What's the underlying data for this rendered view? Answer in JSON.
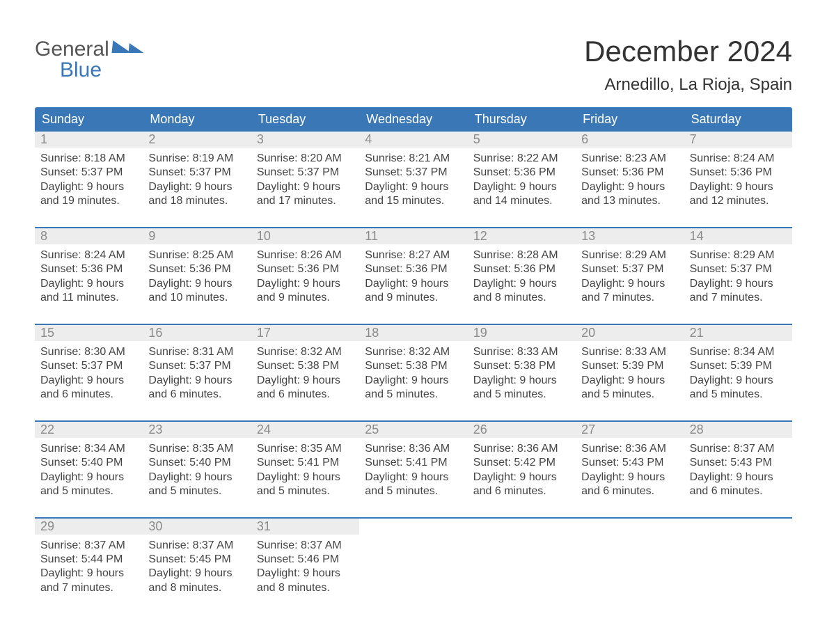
{
  "logo": {
    "line1": "General",
    "line2": "Blue"
  },
  "title": "December 2024",
  "location": "Arnedillo, La Rioja, Spain",
  "colors": {
    "header_bg": "#3a77b6",
    "header_text": "#ffffff",
    "daynum_bg": "#ededed",
    "daynum_text": "#8a8a8a",
    "body_text": "#444444",
    "page_bg": "#ffffff",
    "row_divider": "#3a77b6"
  },
  "typography": {
    "title_fontsize": 42,
    "location_fontsize": 24,
    "header_fontsize": 18,
    "daynum_fontsize": 18,
    "body_fontsize": 16
  },
  "weekdays": [
    "Sunday",
    "Monday",
    "Tuesday",
    "Wednesday",
    "Thursday",
    "Friday",
    "Saturday"
  ],
  "weeks": [
    [
      {
        "n": "1",
        "sunrise": "8:18 AM",
        "sunset": "5:37 PM",
        "daylight": "9 hours and 19 minutes."
      },
      {
        "n": "2",
        "sunrise": "8:19 AM",
        "sunset": "5:37 PM",
        "daylight": "9 hours and 18 minutes."
      },
      {
        "n": "3",
        "sunrise": "8:20 AM",
        "sunset": "5:37 PM",
        "daylight": "9 hours and 17 minutes."
      },
      {
        "n": "4",
        "sunrise": "8:21 AM",
        "sunset": "5:37 PM",
        "daylight": "9 hours and 15 minutes."
      },
      {
        "n": "5",
        "sunrise": "8:22 AM",
        "sunset": "5:36 PM",
        "daylight": "9 hours and 14 minutes."
      },
      {
        "n": "6",
        "sunrise": "8:23 AM",
        "sunset": "5:36 PM",
        "daylight": "9 hours and 13 minutes."
      },
      {
        "n": "7",
        "sunrise": "8:24 AM",
        "sunset": "5:36 PM",
        "daylight": "9 hours and 12 minutes."
      }
    ],
    [
      {
        "n": "8",
        "sunrise": "8:24 AM",
        "sunset": "5:36 PM",
        "daylight": "9 hours and 11 minutes."
      },
      {
        "n": "9",
        "sunrise": "8:25 AM",
        "sunset": "5:36 PM",
        "daylight": "9 hours and 10 minutes."
      },
      {
        "n": "10",
        "sunrise": "8:26 AM",
        "sunset": "5:36 PM",
        "daylight": "9 hours and 9 minutes."
      },
      {
        "n": "11",
        "sunrise": "8:27 AM",
        "sunset": "5:36 PM",
        "daylight": "9 hours and 9 minutes."
      },
      {
        "n": "12",
        "sunrise": "8:28 AM",
        "sunset": "5:36 PM",
        "daylight": "9 hours and 8 minutes."
      },
      {
        "n": "13",
        "sunrise": "8:29 AM",
        "sunset": "5:37 PM",
        "daylight": "9 hours and 7 minutes."
      },
      {
        "n": "14",
        "sunrise": "8:29 AM",
        "sunset": "5:37 PM",
        "daylight": "9 hours and 7 minutes."
      }
    ],
    [
      {
        "n": "15",
        "sunrise": "8:30 AM",
        "sunset": "5:37 PM",
        "daylight": "9 hours and 6 minutes."
      },
      {
        "n": "16",
        "sunrise": "8:31 AM",
        "sunset": "5:37 PM",
        "daylight": "9 hours and 6 minutes."
      },
      {
        "n": "17",
        "sunrise": "8:32 AM",
        "sunset": "5:38 PM",
        "daylight": "9 hours and 6 minutes."
      },
      {
        "n": "18",
        "sunrise": "8:32 AM",
        "sunset": "5:38 PM",
        "daylight": "9 hours and 5 minutes."
      },
      {
        "n": "19",
        "sunrise": "8:33 AM",
        "sunset": "5:38 PM",
        "daylight": "9 hours and 5 minutes."
      },
      {
        "n": "20",
        "sunrise": "8:33 AM",
        "sunset": "5:39 PM",
        "daylight": "9 hours and 5 minutes."
      },
      {
        "n": "21",
        "sunrise": "8:34 AM",
        "sunset": "5:39 PM",
        "daylight": "9 hours and 5 minutes."
      }
    ],
    [
      {
        "n": "22",
        "sunrise": "8:34 AM",
        "sunset": "5:40 PM",
        "daylight": "9 hours and 5 minutes."
      },
      {
        "n": "23",
        "sunrise": "8:35 AM",
        "sunset": "5:40 PM",
        "daylight": "9 hours and 5 minutes."
      },
      {
        "n": "24",
        "sunrise": "8:35 AM",
        "sunset": "5:41 PM",
        "daylight": "9 hours and 5 minutes."
      },
      {
        "n": "25",
        "sunrise": "8:36 AM",
        "sunset": "5:41 PM",
        "daylight": "9 hours and 5 minutes."
      },
      {
        "n": "26",
        "sunrise": "8:36 AM",
        "sunset": "5:42 PM",
        "daylight": "9 hours and 6 minutes."
      },
      {
        "n": "27",
        "sunrise": "8:36 AM",
        "sunset": "5:43 PM",
        "daylight": "9 hours and 6 minutes."
      },
      {
        "n": "28",
        "sunrise": "8:37 AM",
        "sunset": "5:43 PM",
        "daylight": "9 hours and 6 minutes."
      }
    ],
    [
      {
        "n": "29",
        "sunrise": "8:37 AM",
        "sunset": "5:44 PM",
        "daylight": "9 hours and 7 minutes."
      },
      {
        "n": "30",
        "sunrise": "8:37 AM",
        "sunset": "5:45 PM",
        "daylight": "9 hours and 8 minutes."
      },
      {
        "n": "31",
        "sunrise": "8:37 AM",
        "sunset": "5:46 PM",
        "daylight": "9 hours and 8 minutes."
      },
      null,
      null,
      null,
      null
    ]
  ],
  "labels": {
    "sunrise_prefix": "Sunrise: ",
    "sunset_prefix": "Sunset: ",
    "daylight_prefix": "Daylight: "
  }
}
